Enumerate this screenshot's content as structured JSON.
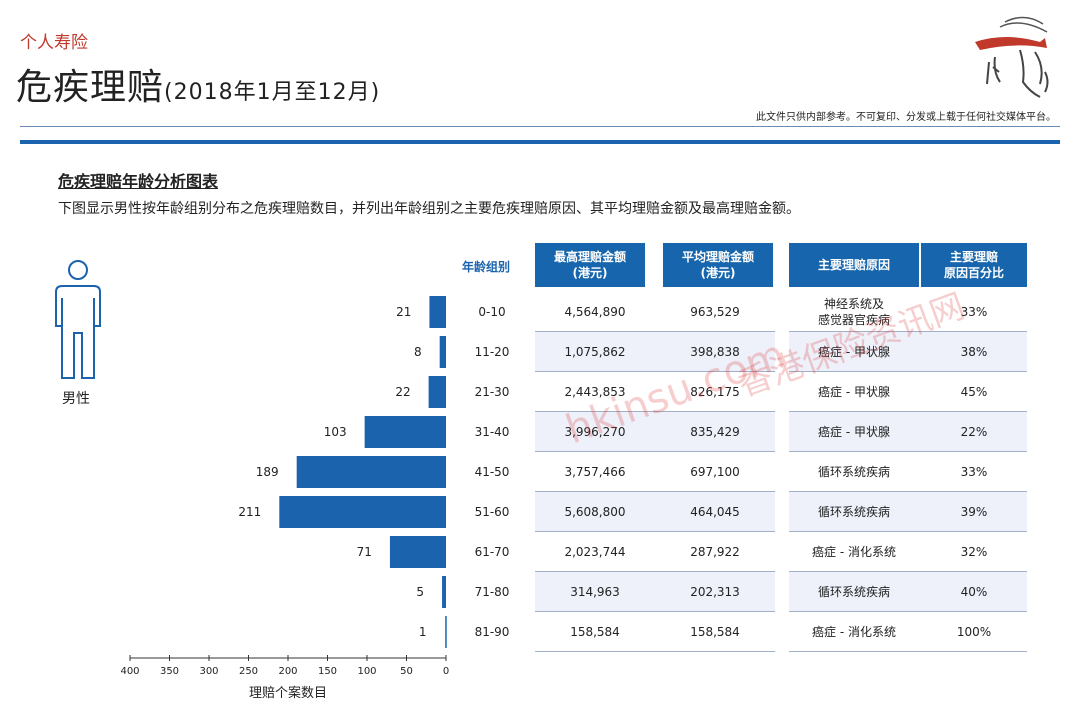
{
  "header": {
    "brand": "个人寿险",
    "title": "危疾理赔",
    "title_sub": "(2018年1月至12月)",
    "disclaimer": "此文件只供内部参考。不可复印、分发或上载于任何社交媒体平台。"
  },
  "section": {
    "title": "危疾理赔年龄分析图表",
    "description": "下图显示男性按年龄组别分布之危疾理赔数目，并列出年龄组别之主要危疾理赔原因、其平均理赔金额及最高理赔金额。",
    "gender_label": "男性"
  },
  "table": {
    "age_header": "年龄组别",
    "col_max": "最高理赔金额\n(港元)",
    "col_avg": "平均理赔金额\n(港元)",
    "col_cause": "主要理赔原因",
    "col_pct": "主要理赔\n原因百分比",
    "rows": [
      {
        "age": "0-10",
        "max": "4,564,890",
        "avg": "963,529",
        "cause": "神经系统及\n感觉器官疾病",
        "pct": "33%"
      },
      {
        "age": "11-20",
        "max": "1,075,862",
        "avg": "398,838",
        "cause": "癌症 - 甲状腺",
        "pct": "38%"
      },
      {
        "age": "21-30",
        "max": "2,443,853",
        "avg": "826,175",
        "cause": "癌症 - 甲状腺",
        "pct": "45%"
      },
      {
        "age": "31-40",
        "max": "3,996,270",
        "avg": "835,429",
        "cause": "癌症 - 甲状腺",
        "pct": "22%"
      },
      {
        "age": "41-50",
        "max": "3,757,466",
        "avg": "697,100",
        "cause": "循环系统疾病",
        "pct": "33%"
      },
      {
        "age": "51-60",
        "max": "5,608,800",
        "avg": "464,045",
        "cause": "循环系统疾病",
        "pct": "39%"
      },
      {
        "age": "61-70",
        "max": "2,023,744",
        "avg": "287,922",
        "cause": "癌症 - 消化系统",
        "pct": "32%"
      },
      {
        "age": "71-80",
        "max": "314,963",
        "avg": "202,313",
        "cause": "循环系统疾病",
        "pct": "40%"
      },
      {
        "age": "81-90",
        "max": "158,584",
        "avg": "158,584",
        "cause": "癌症 - 消化系统",
        "pct": "100%"
      }
    ]
  },
  "watermark": {
    "line1": "香港保险资讯网",
    "line2": "hkinsu.com"
  },
  "colors": {
    "bar": "#1b63ac",
    "header_bg": "#1766ad",
    "accent_red": "#c0392b"
  },
  "chart_data": {
    "type": "bar",
    "orientation": "horizontal",
    "categories": [
      "0-10",
      "11-20",
      "21-30",
      "31-40",
      "41-50",
      "51-60",
      "61-70",
      "71-80",
      "81-90"
    ],
    "values": [
      21,
      8,
      22,
      103,
      189,
      211,
      71,
      5,
      1
    ],
    "xlabel": "理赔个案数目",
    "xlim": [
      0,
      400
    ],
    "xticks": [
      400,
      350,
      300,
      250,
      200,
      150,
      100,
      50,
      0
    ],
    "x_reversed": true,
    "grid": false
  }
}
